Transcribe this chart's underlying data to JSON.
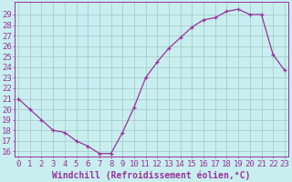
{
  "x": [
    0,
    1,
    2,
    3,
    4,
    5,
    6,
    7,
    8,
    9,
    10,
    11,
    12,
    13,
    14,
    15,
    16,
    17,
    18,
    19,
    20,
    21,
    22,
    23
  ],
  "y": [
    21.0,
    20.0,
    19.0,
    18.0,
    17.8,
    17.0,
    16.5,
    15.8,
    15.8,
    17.8,
    20.2,
    23.0,
    24.5,
    25.8,
    26.8,
    27.8,
    28.5,
    28.7,
    29.3,
    29.5,
    29.0,
    29.0,
    25.2,
    23.7
  ],
  "line_color": "#993399",
  "marker_color": "#993399",
  "bg_color": "#c8eef0",
  "grid_color": "#aacccc",
  "tick_color": "#993399",
  "label_color": "#993399",
  "xlabel": "Windchill (Refroidissement éolien,°C)",
  "ylim_min": 15.5,
  "ylim_max": 30.2,
  "xlim_min": -0.3,
  "xlim_max": 23.3,
  "yticks": [
    16,
    17,
    18,
    19,
    20,
    21,
    22,
    23,
    24,
    25,
    26,
    27,
    28,
    29
  ],
  "xticks": [
    0,
    1,
    2,
    3,
    4,
    5,
    6,
    7,
    8,
    9,
    10,
    11,
    12,
    13,
    14,
    15,
    16,
    17,
    18,
    19,
    20,
    21,
    22,
    23
  ],
  "font_size": 6.5,
  "xlabel_font_size": 7.0
}
